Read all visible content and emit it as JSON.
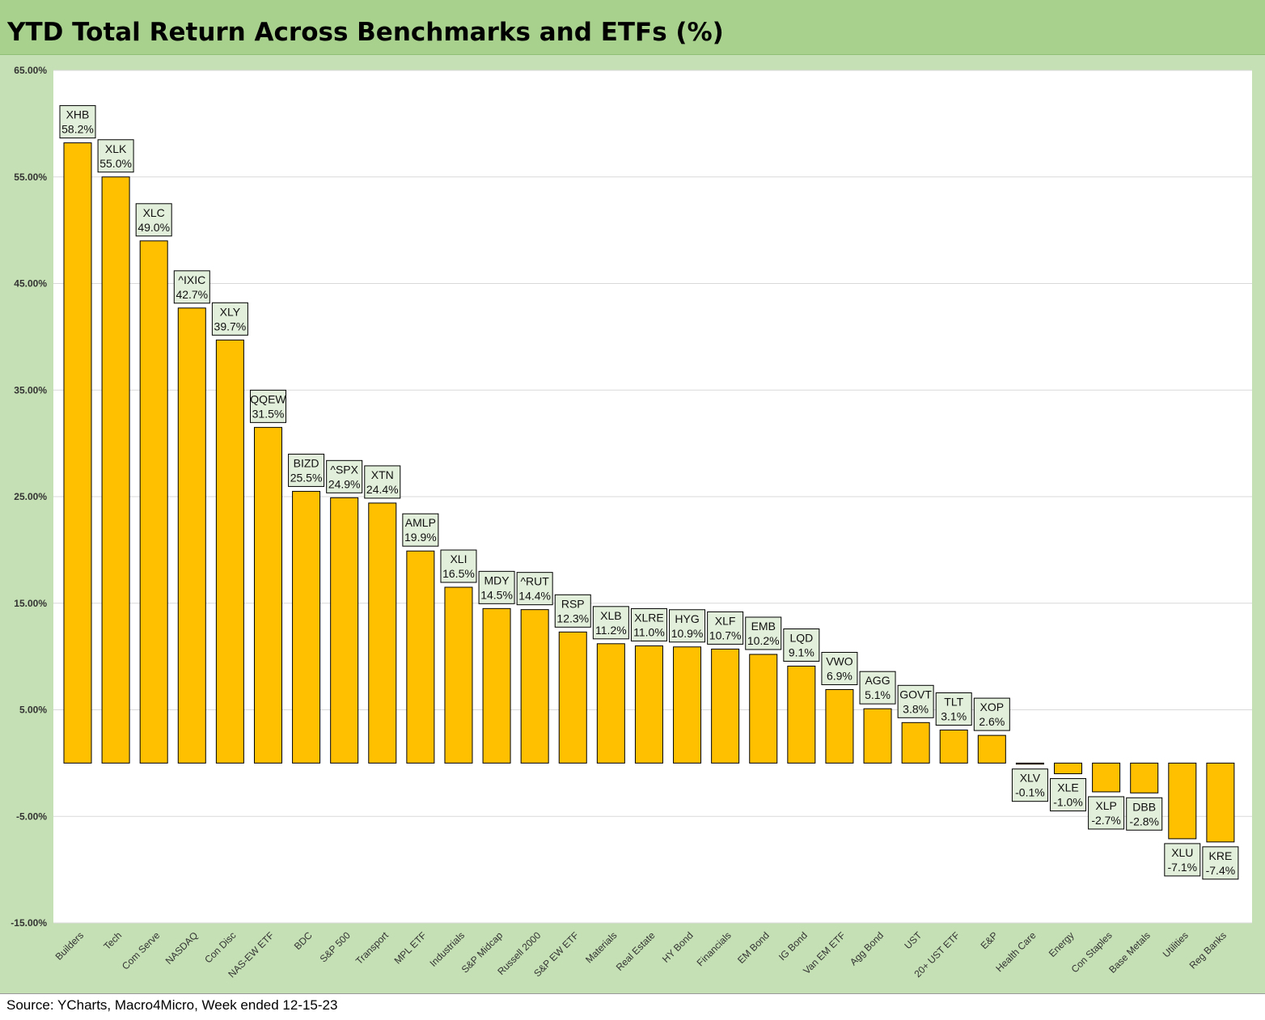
{
  "title": "YTD Total Return Across Benchmarks and ETFs (%)",
  "source": "Source: YCharts, Macro4Micro, Week ended 12-15-23",
  "colors": {
    "bar": "#ffc000",
    "title_band": "#a9d18e",
    "frame": "#c5e0b4",
    "label_box": "#e2efda"
  },
  "chart_data": {
    "type": "bar",
    "title": "YTD Total Return Across Benchmarks and ETFs (%)",
    "xlabel": "",
    "ylabel": "",
    "ylim": [
      -15,
      65
    ],
    "yticks": [
      -15,
      -5,
      5,
      15,
      25,
      35,
      45,
      55,
      65
    ],
    "ytick_labels": [
      "-15.00%",
      "-5.00%",
      "5.00%",
      "15.00%",
      "25.00%",
      "35.00%",
      "45.00%",
      "55.00%",
      "65.00%"
    ],
    "grid": true,
    "categories": [
      "Builders",
      "Tech",
      "Com Serve",
      "NASDAQ",
      "Con Disc",
      "NAS-EW ETF",
      "BDC",
      "S&P 500",
      "Transport",
      "MPL ETF",
      "Industrials",
      "S&P Midcap",
      "Russell 2000",
      "S&P EW ETF",
      "Materials",
      "Real Estate",
      "HY Bond",
      "Financials",
      "EM Bond",
      "IG Bond",
      "Van EM ETF",
      "Agg Bond",
      "UST",
      "20+ UST ETF",
      "E&P",
      "Health Care",
      "Energy",
      "Con Staples",
      "Base Metals",
      "Utilities",
      "Reg Banks"
    ],
    "tickers": [
      "XHB",
      "XLK",
      "XLC",
      "^IXIC",
      "XLY",
      "QQEW",
      "BIZD",
      "^SPX",
      "XTN",
      "AMLP",
      "XLI",
      "MDY",
      "^RUT",
      "RSP",
      "XLB",
      "XLRE",
      "HYG",
      "XLF",
      "EMB",
      "LQD",
      "VWO",
      "AGG",
      "GOVT",
      "TLT",
      "XOP",
      "XLV",
      "XLE",
      "XLP",
      "DBB",
      "XLU",
      "KRE"
    ],
    "values": [
      58.2,
      55.0,
      49.0,
      42.7,
      39.7,
      31.5,
      25.5,
      24.9,
      24.4,
      19.9,
      16.5,
      14.5,
      14.4,
      12.3,
      11.2,
      11.0,
      10.9,
      10.7,
      10.2,
      9.1,
      6.9,
      5.1,
      3.8,
      3.1,
      2.6,
      -0.1,
      -1.0,
      -2.7,
      -2.8,
      -7.1,
      -7.4
    ],
    "value_labels": [
      "58.2%",
      "55.0%",
      "49.0%",
      "42.7%",
      "39.7%",
      "31.5%",
      "25.5%",
      "24.9%",
      "24.4%",
      "19.9%",
      "16.5%",
      "14.5%",
      "14.4%",
      "12.3%",
      "11.2%",
      "11.0%",
      "10.9%",
      "10.7%",
      "10.2%",
      "9.1%",
      "6.9%",
      "5.1%",
      "3.8%",
      "3.1%",
      "2.6%",
      "-0.1%",
      "-1.0%",
      "-2.7%",
      "-2.8%",
      "-7.1%",
      "-7.4%"
    ]
  }
}
